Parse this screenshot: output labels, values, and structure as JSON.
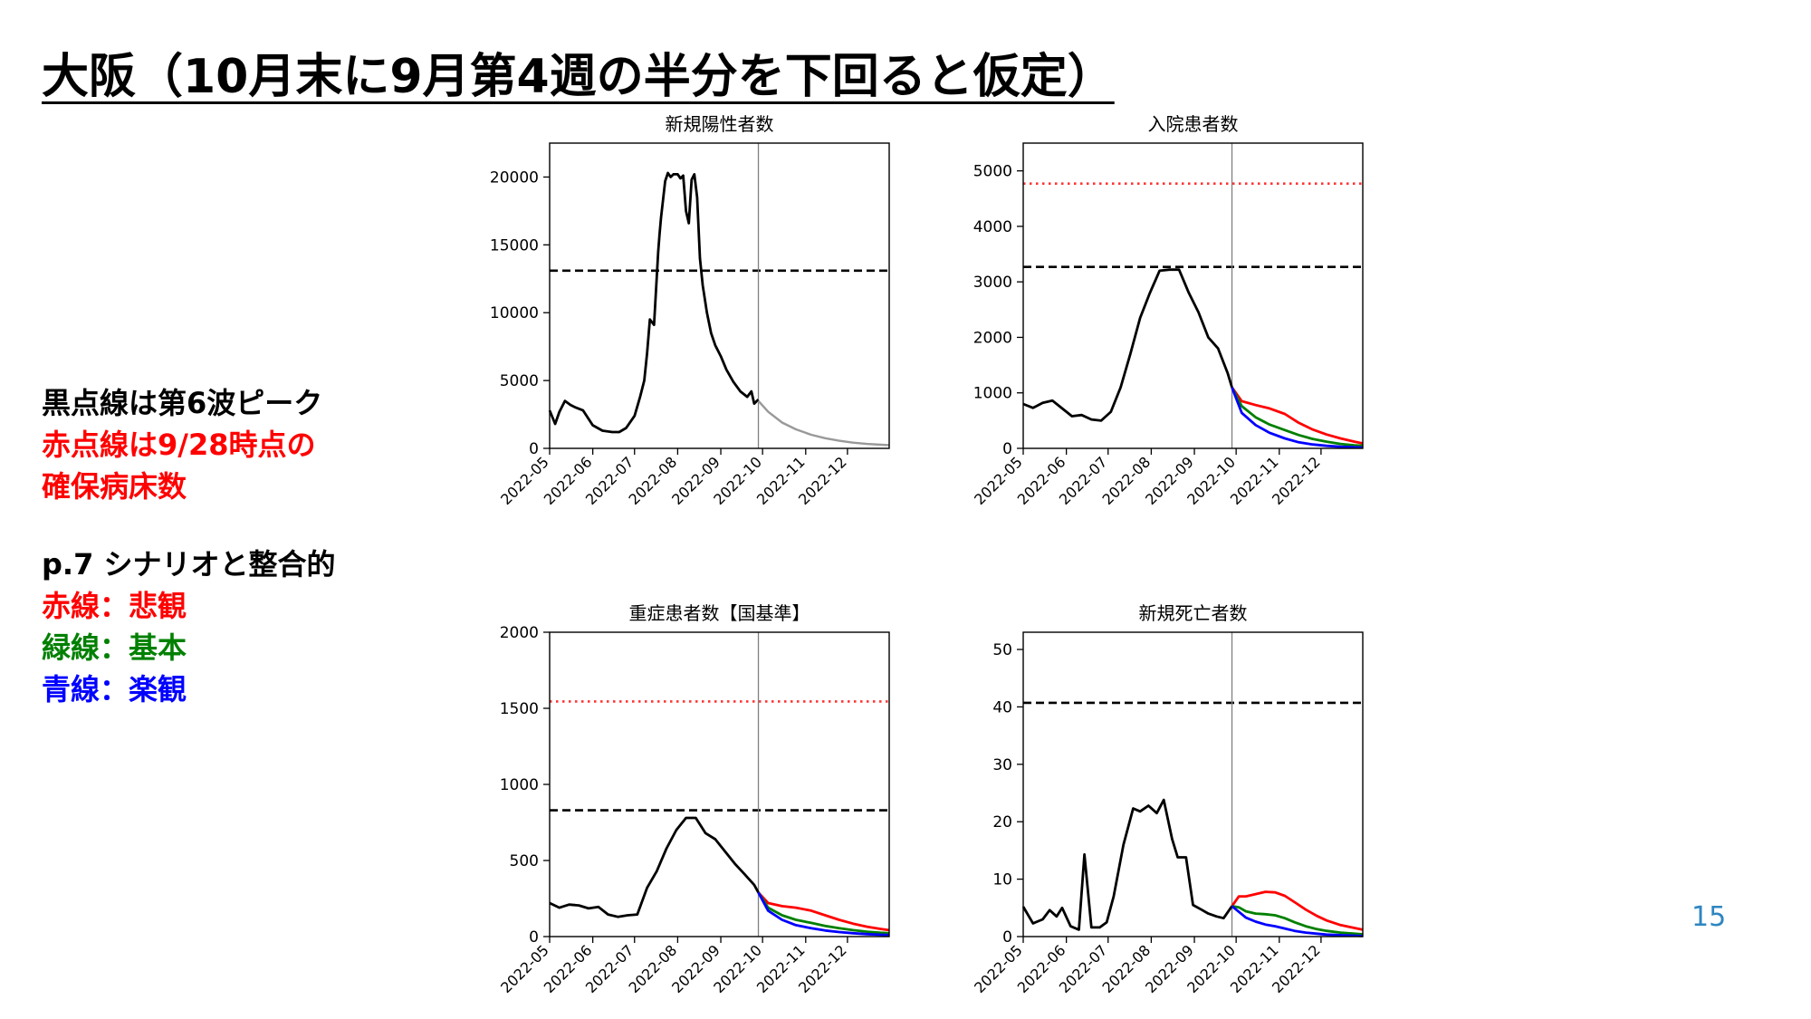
{
  "slide": {
    "title": "大阪（10月末に9月第4週の半分を下回ると仮定）",
    "notes_a": [
      {
        "text": "黒点線は第6波ピーク",
        "color": "#000000"
      },
      {
        "text": "赤点線は9/28時点の",
        "color": "#ff0000"
      },
      {
        "text": "確保病床数",
        "color": "#ff0000"
      }
    ],
    "notes_b": [
      {
        "text": "p.7 シナリオと整合的",
        "color": "#000000"
      },
      {
        "text": "赤線：悲観",
        "color": "#ff0000"
      },
      {
        "text": "緑線：基本",
        "color": "#008000"
      },
      {
        "text": "青線：楽観",
        "color": "#0000ff"
      }
    ],
    "page_number": "15"
  },
  "colors": {
    "actual": "#000000",
    "projection_gray": "#999999",
    "pessimistic": "#ff0000",
    "baseline": "#008000",
    "optimistic": "#0000ff",
    "wave6_peak_line": "#000000",
    "bed_capacity_line": "#ff3333",
    "accent_blue": "#2e86c1"
  },
  "chart_data": [
    {
      "id": "new-cases",
      "type": "line",
      "title": "新規陽性者数",
      "x_ticks": [
        "2022-05",
        "2022-06",
        "2022-07",
        "2022-08",
        "2022-09",
        "2022-10",
        "2022-11",
        "2022-12"
      ],
      "xlim": [
        "2022-05-01",
        "2022-12-31"
      ],
      "ylim": [
        0,
        22500
      ],
      "y_ticks": [
        0,
        5000,
        10000,
        15000,
        20000
      ],
      "vline_date": "2022-09-28",
      "hlines": [
        {
          "value": 13100,
          "style": "dashed",
          "color": "#000000",
          "label": "第6波ピーク"
        }
      ],
      "series": [
        {
          "role": "actual",
          "color": "#000000",
          "x": [
            "2022-05-01",
            "2022-05-05",
            "2022-05-08",
            "2022-05-12",
            "2022-05-16",
            "2022-05-20",
            "2022-05-25",
            "2022-06-01",
            "2022-06-08",
            "2022-06-15",
            "2022-06-20",
            "2022-06-25",
            "2022-07-01",
            "2022-07-05",
            "2022-07-08",
            "2022-07-10",
            "2022-07-12",
            "2022-07-15",
            "2022-07-18",
            "2022-07-19",
            "2022-07-20",
            "2022-07-23",
            "2022-07-25",
            "2022-07-27",
            "2022-07-29",
            "2022-08-01",
            "2022-08-03",
            "2022-08-05",
            "2022-08-07",
            "2022-08-09",
            "2022-08-11",
            "2022-08-13",
            "2022-08-15",
            "2022-08-17",
            "2022-08-19",
            "2022-08-22",
            "2022-08-25",
            "2022-08-28",
            "2022-09-01",
            "2022-09-05",
            "2022-09-10",
            "2022-09-15",
            "2022-09-20",
            "2022-09-23",
            "2022-09-25",
            "2022-09-28"
          ],
          "y": [
            2800,
            1800,
            2700,
            3500,
            3200,
            3000,
            2800,
            1700,
            1300,
            1200,
            1200,
            1500,
            2400,
            3800,
            5000,
            7000,
            9500,
            9100,
            14500,
            15800,
            17000,
            19700,
            20300,
            20000,
            20200,
            20200,
            19900,
            20100,
            17500,
            16600,
            19800,
            20200,
            18500,
            14000,
            12000,
            10000,
            8500,
            7600,
            6800,
            5800,
            4900,
            4200,
            3800,
            4200,
            3300,
            3600
          ]
        },
        {
          "role": "projection",
          "color": "#999999",
          "x": [
            "2022-09-28",
            "2022-10-05",
            "2022-10-15",
            "2022-10-25",
            "2022-11-05",
            "2022-11-15",
            "2022-11-25",
            "2022-12-05",
            "2022-12-15",
            "2022-12-25",
            "2022-12-31"
          ],
          "y": [
            3500,
            2700,
            1900,
            1400,
            1000,
            750,
            560,
            420,
            330,
            270,
            240
          ]
        }
      ]
    },
    {
      "id": "hospitalized",
      "type": "line",
      "title": "入院患者数",
      "x_ticks": [
        "2022-05",
        "2022-06",
        "2022-07",
        "2022-08",
        "2022-09",
        "2022-10",
        "2022-11",
        "2022-12"
      ],
      "xlim": [
        "2022-05-01",
        "2022-12-31"
      ],
      "ylim": [
        0,
        5500
      ],
      "y_ticks": [
        0,
        1000,
        2000,
        3000,
        4000,
        5000
      ],
      "vline_date": "2022-09-28",
      "hlines": [
        {
          "value": 3270,
          "style": "dashed",
          "color": "#000000",
          "label": "第6波ピーク"
        },
        {
          "value": 4770,
          "style": "dotted",
          "color": "#ff3333",
          "label": "確保病床数"
        }
      ],
      "series": [
        {
          "role": "actual",
          "color": "#000000",
          "x": [
            "2022-05-01",
            "2022-05-08",
            "2022-05-15",
            "2022-05-22",
            "2022-05-29",
            "2022-06-05",
            "2022-06-12",
            "2022-06-19",
            "2022-06-26",
            "2022-07-03",
            "2022-07-10",
            "2022-07-17",
            "2022-07-24",
            "2022-07-31",
            "2022-08-07",
            "2022-08-14",
            "2022-08-21",
            "2022-08-28",
            "2022-09-04",
            "2022-09-11",
            "2022-09-18",
            "2022-09-25",
            "2022-09-28"
          ],
          "y": [
            800,
            730,
            820,
            860,
            720,
            580,
            600,
            520,
            500,
            660,
            1100,
            1700,
            2350,
            2800,
            3200,
            3220,
            3220,
            2800,
            2450,
            2000,
            1800,
            1350,
            1100
          ]
        },
        {
          "role": "pessimistic",
          "color": "#ff0000",
          "x": [
            "2022-09-28",
            "2022-10-05",
            "2022-10-15",
            "2022-10-25",
            "2022-11-05",
            "2022-11-15",
            "2022-11-25",
            "2022-12-05",
            "2022-12-15",
            "2022-12-25",
            "2022-12-31"
          ],
          "y": [
            1100,
            850,
            780,
            720,
            620,
            460,
            340,
            250,
            180,
            120,
            90
          ]
        },
        {
          "role": "baseline",
          "color": "#008000",
          "x": [
            "2022-09-28",
            "2022-10-05",
            "2022-10-15",
            "2022-10-25",
            "2022-11-05",
            "2022-11-15",
            "2022-11-25",
            "2022-12-05",
            "2022-12-15",
            "2022-12-25",
            "2022-12-31"
          ],
          "y": [
            1100,
            760,
            560,
            430,
            330,
            240,
            170,
            120,
            80,
            55,
            45
          ]
        },
        {
          "role": "optimistic",
          "color": "#0000ff",
          "x": [
            "2022-09-28",
            "2022-10-05",
            "2022-10-15",
            "2022-10-25",
            "2022-11-05",
            "2022-11-15",
            "2022-11-25",
            "2022-12-05",
            "2022-12-15",
            "2022-12-25",
            "2022-12-31"
          ],
          "y": [
            1100,
            640,
            420,
            280,
            180,
            110,
            70,
            45,
            30,
            20,
            15
          ]
        }
      ]
    },
    {
      "id": "severe",
      "type": "line",
      "title": "重症患者数【国基準】",
      "x_ticks": [
        "2022-05",
        "2022-06",
        "2022-07",
        "2022-08",
        "2022-09",
        "2022-10",
        "2022-11",
        "2022-12"
      ],
      "xlim": [
        "2022-05-01",
        "2022-12-31"
      ],
      "ylim": [
        0,
        2000
      ],
      "y_ticks": [
        0,
        500,
        1000,
        1500,
        2000
      ],
      "vline_date": "2022-09-28",
      "hlines": [
        {
          "value": 830,
          "style": "dashed",
          "color": "#000000",
          "label": "第6波ピーク"
        },
        {
          "value": 1545,
          "style": "dotted",
          "color": "#ff3333",
          "label": "確保病床数"
        }
      ],
      "series": [
        {
          "role": "actual",
          "color": "#000000",
          "x": [
            "2022-05-01",
            "2022-05-08",
            "2022-05-15",
            "2022-05-22",
            "2022-05-29",
            "2022-06-05",
            "2022-06-12",
            "2022-06-19",
            "2022-06-26",
            "2022-07-03",
            "2022-07-10",
            "2022-07-17",
            "2022-07-24",
            "2022-07-31",
            "2022-08-07",
            "2022-08-14",
            "2022-08-21",
            "2022-08-28",
            "2022-09-04",
            "2022-09-11",
            "2022-09-18",
            "2022-09-25",
            "2022-09-28"
          ],
          "y": [
            220,
            190,
            210,
            205,
            185,
            195,
            145,
            130,
            140,
            145,
            320,
            430,
            580,
            700,
            780,
            780,
            680,
            640,
            560,
            480,
            410,
            340,
            290
          ]
        },
        {
          "role": "pessimistic",
          "color": "#ff0000",
          "x": [
            "2022-09-28",
            "2022-10-05",
            "2022-10-15",
            "2022-10-25",
            "2022-11-05",
            "2022-11-15",
            "2022-11-25",
            "2022-12-05",
            "2022-12-15",
            "2022-12-25",
            "2022-12-31"
          ],
          "y": [
            290,
            220,
            200,
            190,
            170,
            140,
            110,
            85,
            65,
            50,
            42
          ]
        },
        {
          "role": "baseline",
          "color": "#008000",
          "x": [
            "2022-09-28",
            "2022-10-05",
            "2022-10-15",
            "2022-10-25",
            "2022-11-05",
            "2022-11-15",
            "2022-11-25",
            "2022-12-05",
            "2022-12-15",
            "2022-12-25",
            "2022-12-31"
          ],
          "y": [
            290,
            190,
            140,
            110,
            90,
            70,
            55,
            42,
            32,
            25,
            22
          ]
        },
        {
          "role": "optimistic",
          "color": "#0000ff",
          "x": [
            "2022-09-28",
            "2022-10-05",
            "2022-10-15",
            "2022-10-25",
            "2022-11-05",
            "2022-11-15",
            "2022-11-25",
            "2022-12-05",
            "2022-12-15",
            "2022-12-25",
            "2022-12-31"
          ],
          "y": [
            290,
            170,
            110,
            75,
            55,
            40,
            30,
            22,
            16,
            12,
            10
          ]
        }
      ]
    },
    {
      "id": "deaths",
      "type": "line",
      "title": "新規死亡者数",
      "x_ticks": [
        "2022-05",
        "2022-06",
        "2022-07",
        "2022-08",
        "2022-09",
        "2022-10",
        "2022-11",
        "2022-12"
      ],
      "xlim": [
        "2022-05-01",
        "2022-12-31"
      ],
      "ylim": [
        0,
        53
      ],
      "y_ticks": [
        0,
        10,
        20,
        30,
        40,
        50
      ],
      "vline_date": "2022-09-28",
      "hlines": [
        {
          "value": 40.7,
          "style": "dashed",
          "color": "#000000",
          "label": "第6波ピーク"
        }
      ],
      "series": [
        {
          "role": "actual",
          "color": "#000000",
          "x": [
            "2022-05-01",
            "2022-05-08",
            "2022-05-15",
            "2022-05-20",
            "2022-05-25",
            "2022-05-29",
            "2022-06-04",
            "2022-06-10",
            "2022-06-14",
            "2022-06-19",
            "2022-06-25",
            "2022-06-30",
            "2022-07-05",
            "2022-07-12",
            "2022-07-19",
            "2022-07-24",
            "2022-07-30",
            "2022-08-05",
            "2022-08-10",
            "2022-08-16",
            "2022-08-20",
            "2022-08-26",
            "2022-08-31",
            "2022-09-06",
            "2022-09-11",
            "2022-09-17",
            "2022-09-22",
            "2022-09-28"
          ],
          "y": [
            5.2,
            2.3,
            3.0,
            4.6,
            3.5,
            5.0,
            1.8,
            1.2,
            14.3,
            1.6,
            1.6,
            2.5,
            7.0,
            16.0,
            22.3,
            21.8,
            22.8,
            21.5,
            23.8,
            17.0,
            13.8,
            13.8,
            5.5,
            4.7,
            4.0,
            3.5,
            3.2,
            5.3
          ]
        },
        {
          "role": "pessimistic",
          "color": "#ff0000",
          "x": [
            "2022-09-28",
            "2022-10-03",
            "2022-10-08",
            "2022-10-15",
            "2022-10-22",
            "2022-10-29",
            "2022-11-05",
            "2022-11-12",
            "2022-11-20",
            "2022-11-28",
            "2022-12-05",
            "2022-12-15",
            "2022-12-25",
            "2022-12-31"
          ],
          "y": [
            5.3,
            7.0,
            7.0,
            7.4,
            7.8,
            7.7,
            7.1,
            6.0,
            4.7,
            3.6,
            2.8,
            2.0,
            1.5,
            1.2
          ]
        },
        {
          "role": "baseline",
          "color": "#008000",
          "x": [
            "2022-09-28",
            "2022-10-03",
            "2022-10-08",
            "2022-10-15",
            "2022-10-22",
            "2022-10-29",
            "2022-11-05",
            "2022-11-12",
            "2022-11-20",
            "2022-11-28",
            "2022-12-05",
            "2022-12-15",
            "2022-12-25",
            "2022-12-31"
          ],
          "y": [
            5.3,
            5.1,
            4.4,
            4.0,
            3.9,
            3.7,
            3.2,
            2.5,
            1.8,
            1.3,
            1.0,
            0.7,
            0.5,
            0.4
          ]
        },
        {
          "role": "optimistic",
          "color": "#0000ff",
          "x": [
            "2022-09-28",
            "2022-10-03",
            "2022-10-08",
            "2022-10-15",
            "2022-10-22",
            "2022-10-29",
            "2022-11-05",
            "2022-11-12",
            "2022-11-20",
            "2022-11-28",
            "2022-12-05",
            "2022-12-15",
            "2022-12-25",
            "2022-12-31"
          ],
          "y": [
            5.3,
            4.3,
            3.3,
            2.6,
            2.1,
            1.8,
            1.4,
            1.0,
            0.7,
            0.5,
            0.35,
            0.25,
            0.15,
            0.1
          ]
        }
      ]
    }
  ]
}
